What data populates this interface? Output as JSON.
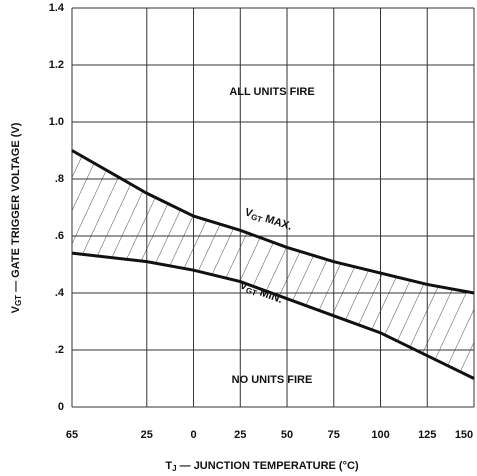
{
  "chart_data": {
    "type": "line",
    "y_label": {
      "symbol": "V",
      "subscript": "GT",
      "text": " — GATE TRIGGER VOLTAGE (V)"
    },
    "x_label": {
      "symbol": "T",
      "subscript": "J",
      "text": " — JUNCTION TEMPERATURE (°C)"
    },
    "annotations": {
      "top": "ALL UNITS FIRE",
      "bottom": "NO UNITS FIRE"
    },
    "xlim": [
      -65,
      150
    ],
    "xticks": [
      {
        "value": -65,
        "label": "65"
      },
      {
        "value": -25,
        "label": "25"
      },
      0,
      25,
      50,
      75,
      100,
      125,
      150
    ],
    "ylim": [
      0,
      1.4
    ],
    "yticks": [
      0,
      {
        "value": 0.2,
        "label": ".2"
      },
      {
        "value": 0.4,
        "label": ".4"
      },
      {
        "value": 0.6,
        "label": ".6"
      },
      {
        "value": 0.8,
        "label": ".8"
      },
      {
        "value": 1.0,
        "label": "1.0"
      },
      {
        "value": 1.2,
        "label": "1.2"
      },
      {
        "value": 1.4,
        "label": "1.4"
      }
    ],
    "grid": true,
    "x": [
      -65,
      -25,
      0,
      25,
      50,
      75,
      100,
      125,
      150
    ],
    "series": [
      {
        "name": {
          "symbol": "V",
          "subscript": "GT",
          "text": " MAX."
        },
        "color": "#111111",
        "values": [
          0.9,
          0.75,
          0.67,
          0.62,
          0.56,
          0.51,
          0.47,
          0.43,
          0.4
        ]
      },
      {
        "name": {
          "symbol": "V",
          "subscript": "GT",
          "text": " MIN."
        },
        "color": "#111111",
        "values": [
          0.54,
          0.51,
          0.48,
          0.44,
          0.38,
          0.32,
          0.26,
          0.18,
          0.1
        ]
      }
    ]
  }
}
